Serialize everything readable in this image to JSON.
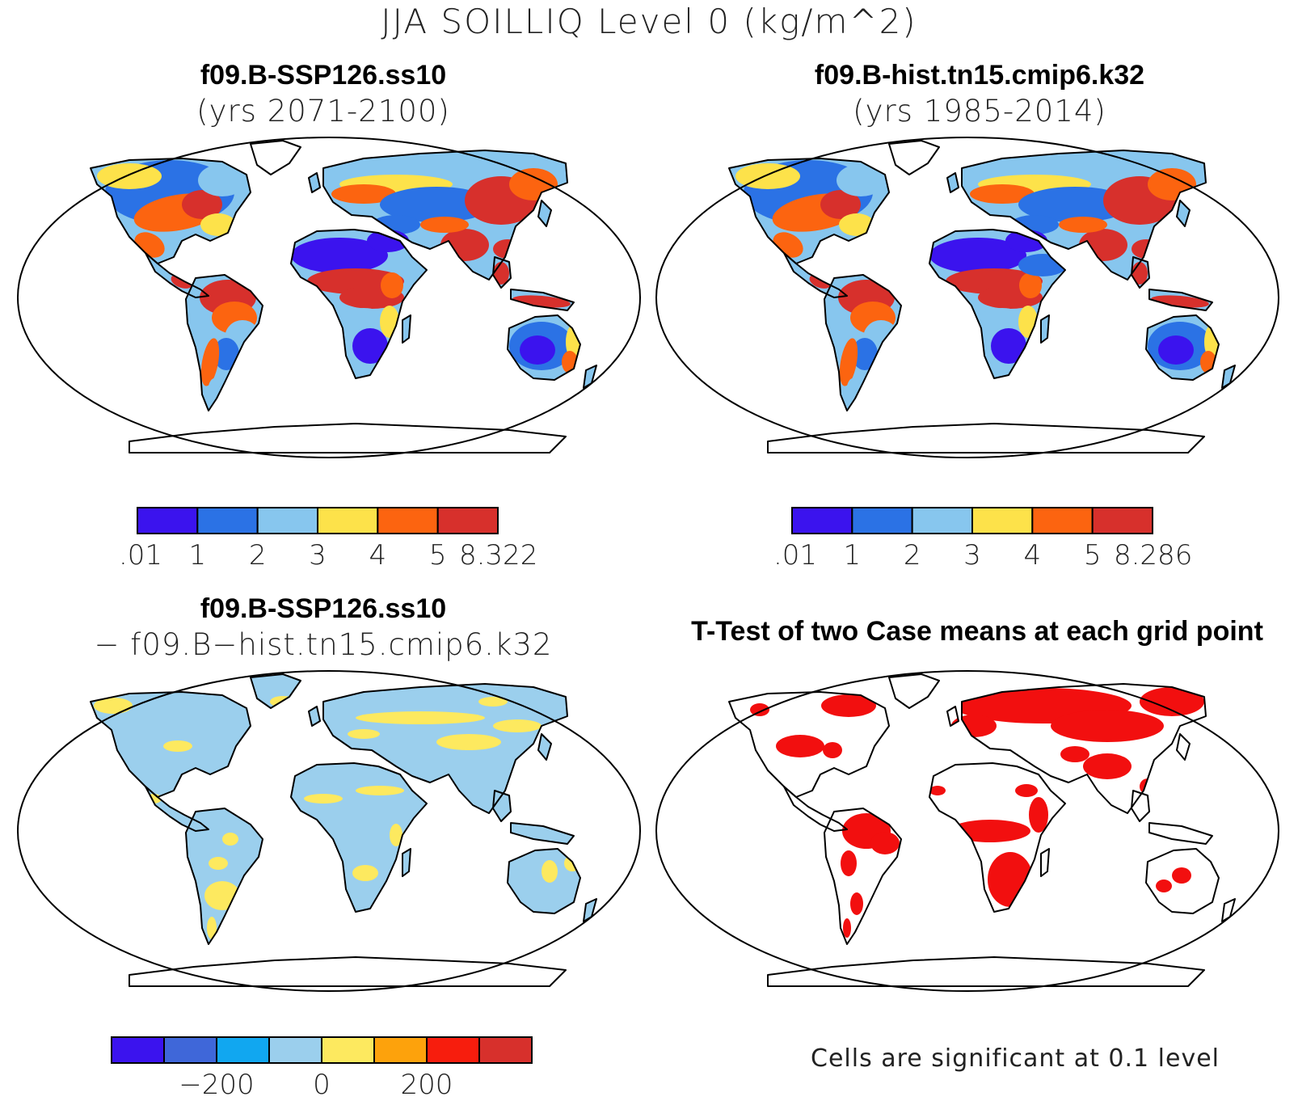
{
  "figure": {
    "title": "JJA SOILLIQ Level 0 (kg/m^2)"
  },
  "panels": [
    {
      "id": "case1",
      "title": "f09.B-SSP126.ss10",
      "subtitle": "(yrs 2071-2100)",
      "fill": "mean",
      "colorbar": {
        "colors": [
          "#3b13ee",
          "#2b72e5",
          "#87c6ee",
          "#fde24a",
          "#fc6410",
          "#d7302c"
        ],
        "labels": [
          ".01",
          "1",
          "2",
          "3",
          "4",
          "5",
          "8.322"
        ]
      }
    },
    {
      "id": "case2",
      "title": "f09.B-hist.tn15.cmip6.k32",
      "subtitle": "(yrs 1985-2014)",
      "fill": "mean",
      "colorbar": {
        "colors": [
          "#3b13ee",
          "#2b72e5",
          "#87c6ee",
          "#fde24a",
          "#fc6410",
          "#d7302c"
        ],
        "labels": [
          ".01",
          "1",
          "2",
          "3",
          "4",
          "5",
          "8.286"
        ]
      }
    },
    {
      "id": "diff",
      "title": "f09.B-SSP126.ss10",
      "subtitle": "− f09.B−hist.tn15.cmip6.k32",
      "fill": "diff",
      "colorbar": {
        "colors": [
          "#3b13ee",
          "#3f67d9",
          "#11a7f0",
          "#9bcfed",
          "#fde95f",
          "#fda20c",
          "#f71d0d",
          "#d7302c"
        ],
        "labels": [
          "−200",
          "0",
          "200"
        ]
      }
    },
    {
      "id": "ttest",
      "title": "T-Test of two Case means at each grid point",
      "fill": "ttest",
      "footnote": "Cells are significant at 0.1 level"
    }
  ],
  "colors": {
    "land_outline": "#000000",
    "significant": "#f20f0f",
    "ocean": "#ffffff"
  }
}
